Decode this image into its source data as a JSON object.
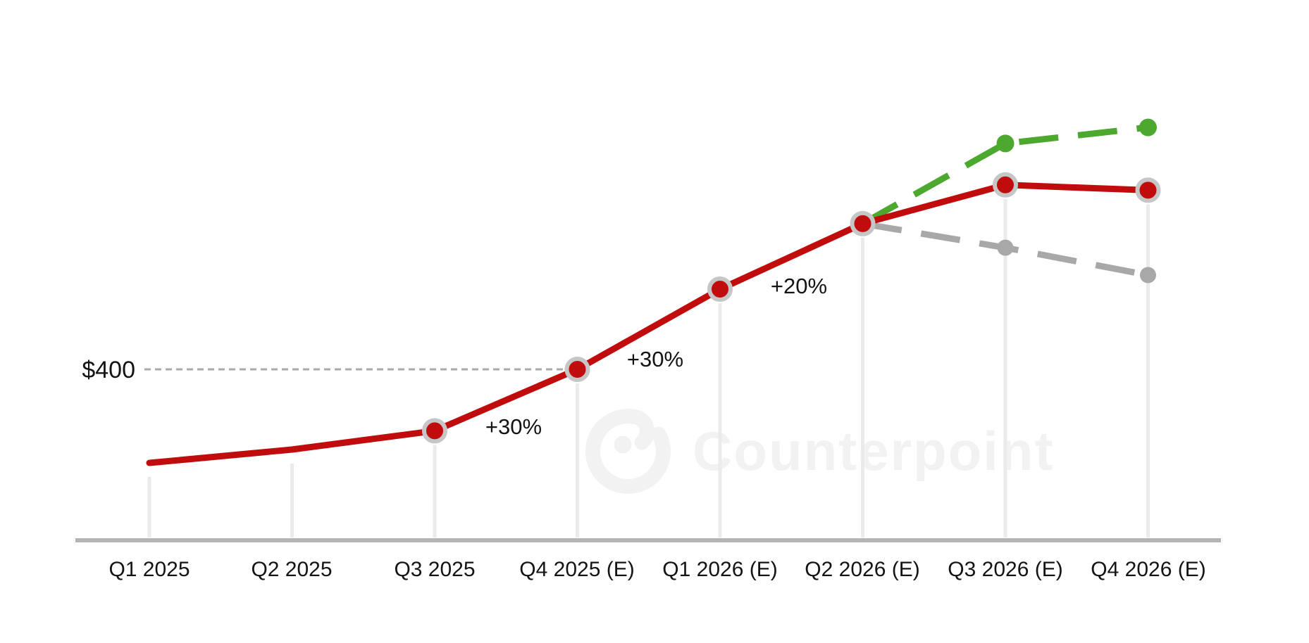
{
  "chart_data": {
    "type": "line",
    "title": "",
    "categories": [
      "Q1 2025",
      "Q2 2025",
      "Q3 2025",
      "Q4 2025 (E)",
      "Q1 2026 (E)",
      "Q2 2026 (E)",
      "Q3 2026 (E)",
      "Q4 2026 (E)"
    ],
    "series": [
      {
        "name": "base-forecast-red",
        "color": "#C00C0C",
        "line_style": "solid",
        "marker_style": "red-dot-with-gray-ring",
        "marker_from_index": 2,
        "start_index": 0,
        "values": [
          260,
          280,
          308,
          400,
          520,
          618,
          676,
          668
        ]
      },
      {
        "name": "upside-scenario-green",
        "color": "#4CA82F",
        "line_style": "dashed",
        "marker_style": "green-dot",
        "marker_from_index": 1,
        "start_index": 5,
        "values": [
          618,
          738,
          762
        ]
      },
      {
        "name": "downside-scenario-gray",
        "color": "#A8A8A8",
        "line_style": "dashed",
        "marker_style": "gray-dot",
        "marker_from_index": 1,
        "start_index": 5,
        "values": [
          618,
          582,
          541
        ]
      }
    ],
    "values_are_estimates_from_pixels": true,
    "annotations": [
      {
        "text": "+30%",
        "segment": [
          "Q3 2025",
          "Q4 2025 (E)"
        ]
      },
      {
        "text": "+30%",
        "segment": [
          "Q4 2025 (E)",
          "Q1 2026 (E)"
        ]
      },
      {
        "text": "+20%",
        "segment": [
          "Q1 2026 (E)",
          "Q2 2026 (E)"
        ]
      }
    ],
    "reference_line": {
      "label": "$400",
      "value": 400,
      "style": "dashed",
      "color": "#AAAAAA",
      "spans_categories": [
        "Q1 2025",
        "Q4 2025 (E)"
      ]
    },
    "axes": {
      "y_axis_visible": false,
      "x_axis_line_color": "#B5B5B5",
      "drop_lines": true,
      "drop_line_color": "#EBEBEB",
      "grid": "off"
    },
    "legend": "none",
    "watermark": {
      "icon": "counterpoint-logo-icon",
      "text": "Counterpoint",
      "color": "#F2F2F2"
    }
  }
}
